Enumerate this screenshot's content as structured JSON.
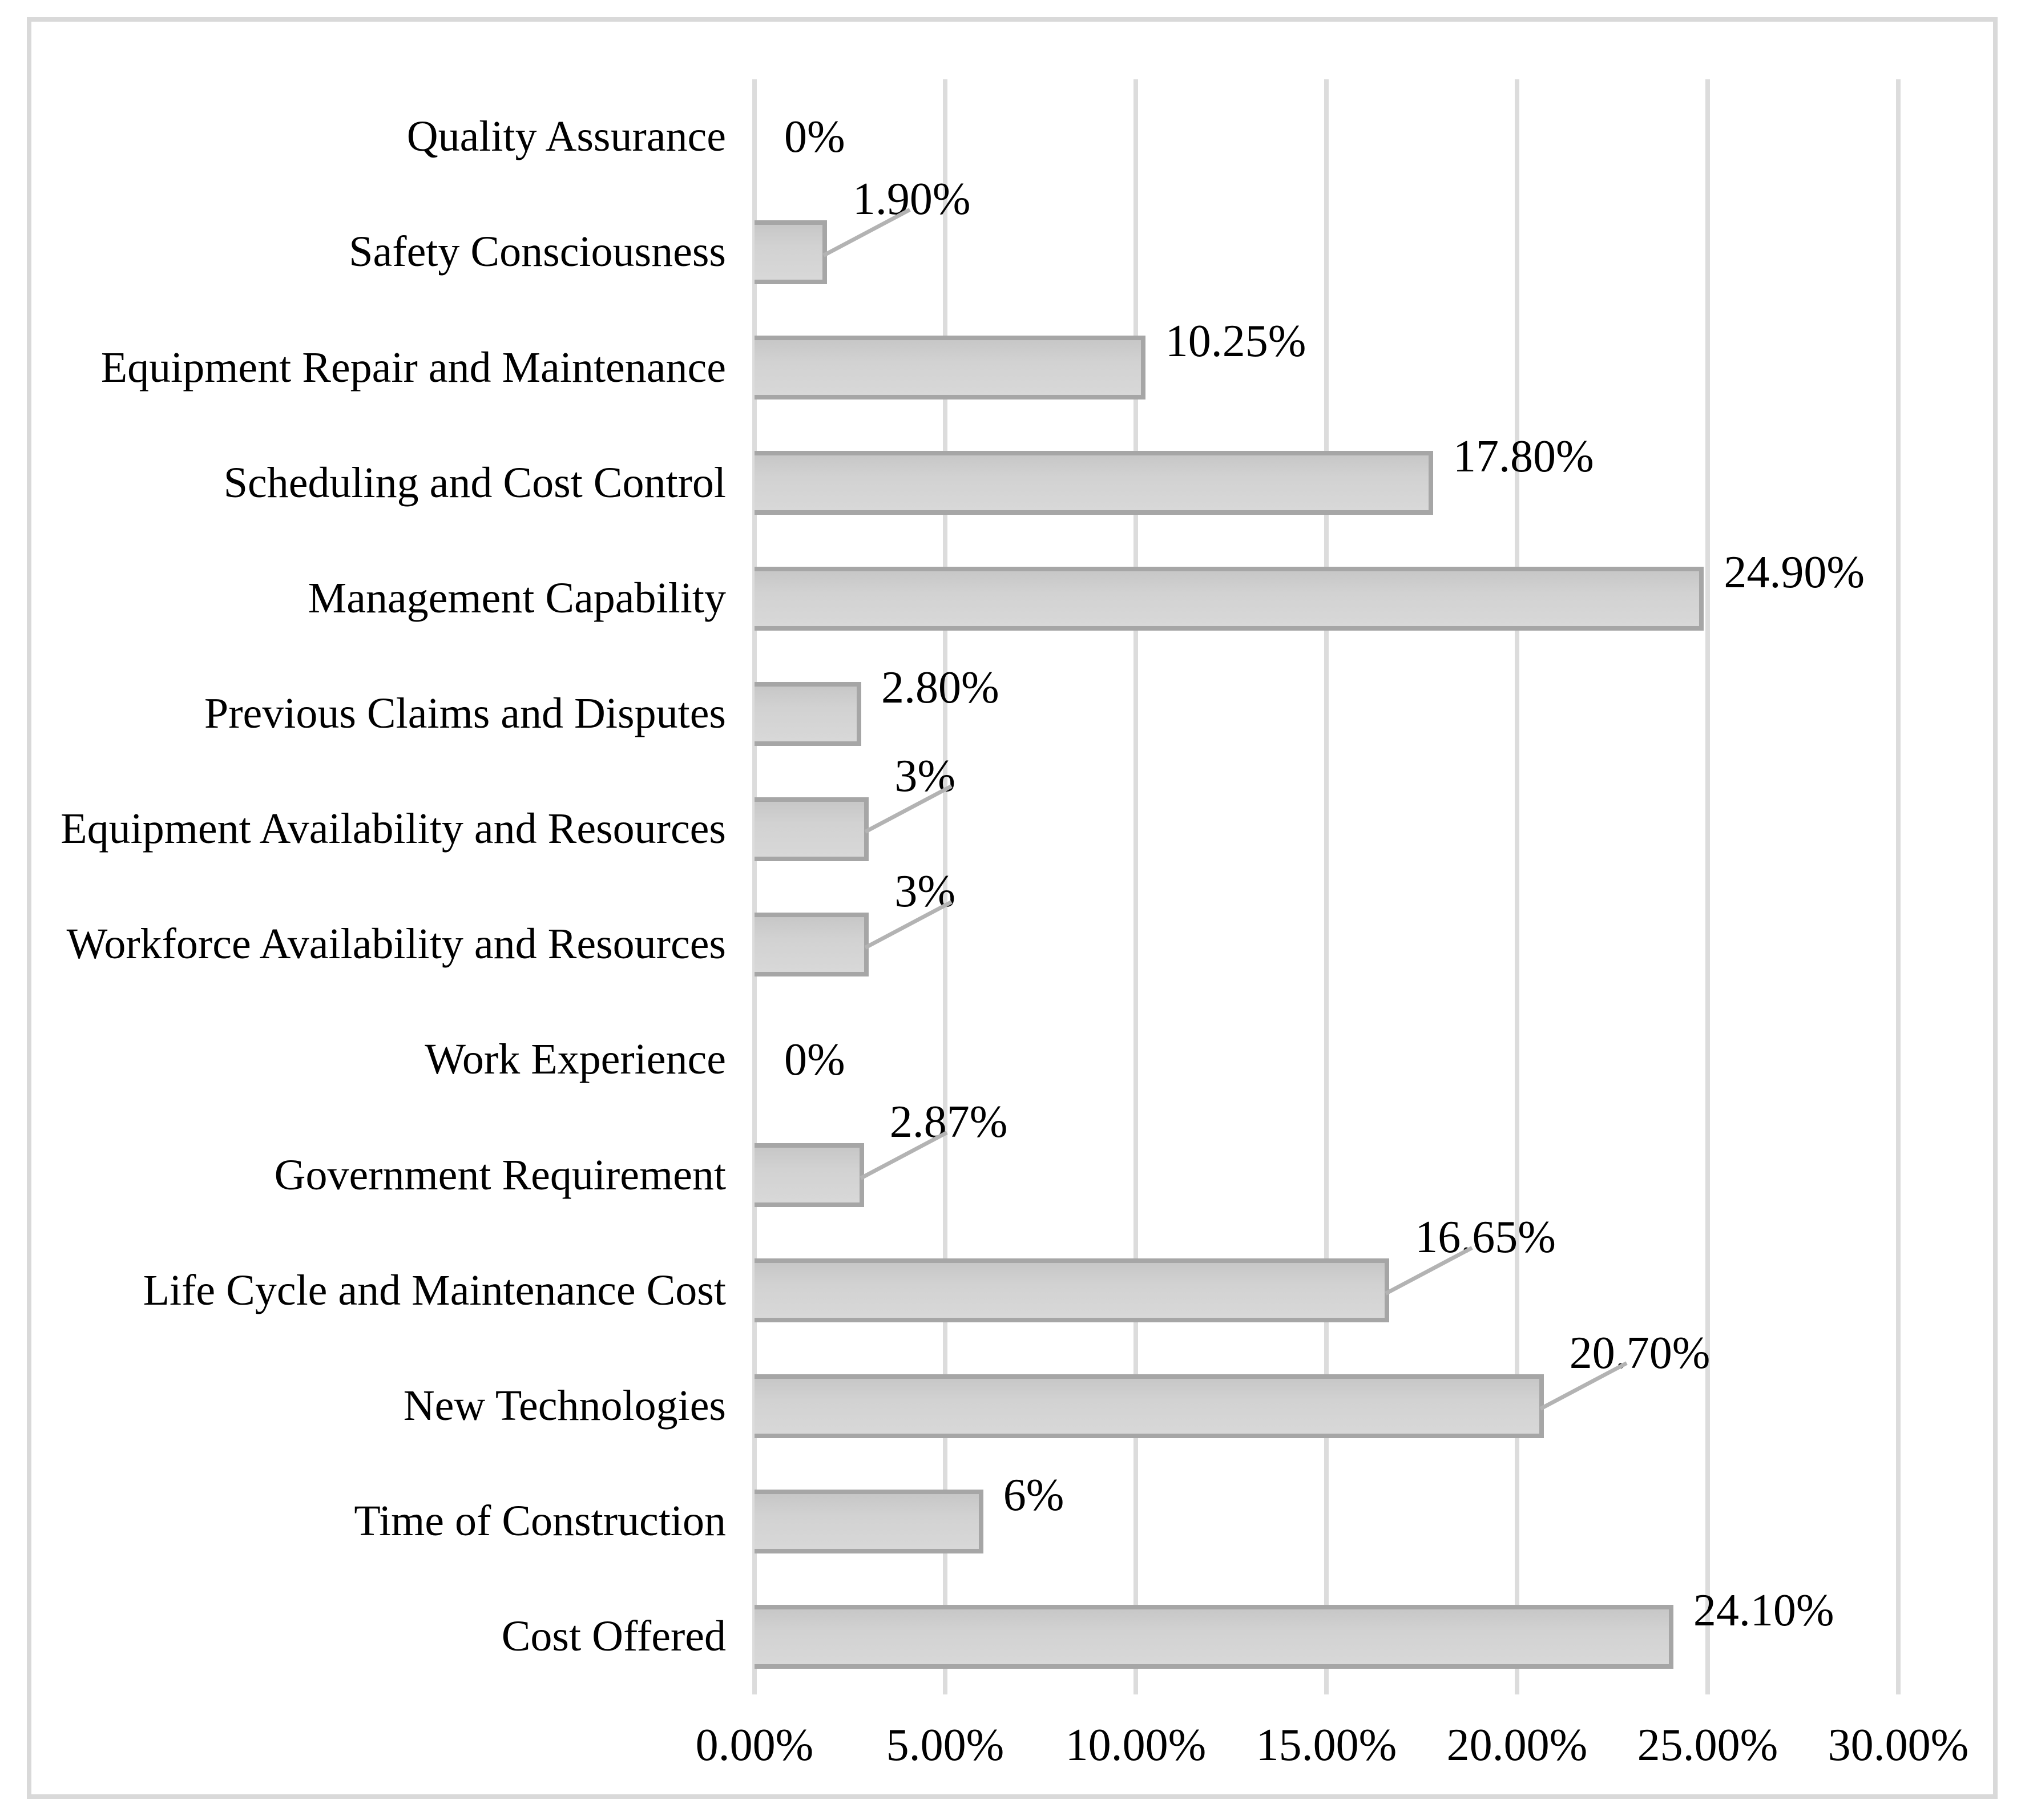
{
  "chart_data": {
    "type": "bar",
    "orientation": "horizontal",
    "title": "",
    "xlabel": "",
    "ylabel": "",
    "grid": true,
    "legend": false,
    "xlim": [
      0,
      30
    ],
    "x_ticks": [
      "0.00%",
      "5.00%",
      "10.00%",
      "15.00%",
      "20.00%",
      "25.00%",
      "30.00%"
    ],
    "categories": [
      "Quality Assurance",
      "Safety Consciousness",
      "Equipment Repair and Maintenance",
      "Scheduling and Cost Control",
      "Management Capability",
      "Previous Claims and Disputes",
      "Equipment Availability and Resources",
      "Workforce Availability and Resources",
      "Work Experience",
      "Government Requirement",
      "Life Cycle and Maintenance Cost",
      "New Technologies",
      "Time of Construction",
      "Cost Offered"
    ],
    "values": [
      0,
      1.9,
      10.25,
      17.8,
      24.9,
      2.8,
      3,
      3,
      0,
      2.87,
      16.65,
      20.7,
      6,
      24.1
    ],
    "value_labels": [
      "0%",
      "1.90%",
      "10.25%",
      "17.80%",
      "24.90%",
      "2.80%",
      "3%",
      "3%",
      "0%",
      "2.87%",
      "16.65%",
      "20.70%",
      "6%",
      "24.10%"
    ],
    "leader_lines": [
      false,
      true,
      false,
      false,
      false,
      false,
      true,
      true,
      false,
      true,
      true,
      true,
      false,
      false
    ],
    "colors": {
      "bar_fill_top": "#c7c7c7",
      "bar_fill_bottom": "#d8d8d8",
      "bar_border": "#a6a6a6",
      "gridline": "#dcdcdc",
      "frame_border": "#d9d9d9",
      "leader_line": "#b3b3b3",
      "text": "#000000",
      "background": "#ffffff"
    }
  }
}
